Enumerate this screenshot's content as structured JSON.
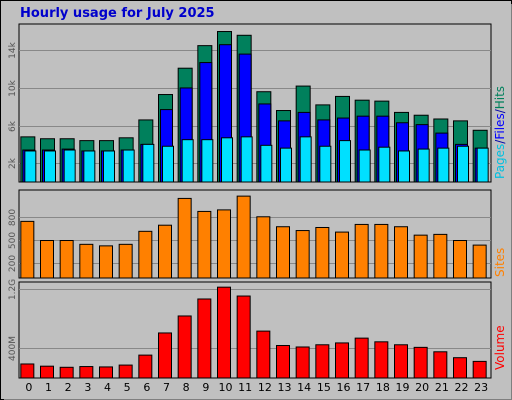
{
  "title": "Hourly usage for July 2025",
  "colors": {
    "hits": "#00805c",
    "files": "#0000ff",
    "pages": "#00e0ff",
    "sites": "#ff8000",
    "volume": "#ff0000",
    "title": "#0000cc",
    "background": "#c0c0c0"
  },
  "right_labels": {
    "pages": "Pages",
    "files": "Files",
    "hits": "Hits",
    "sep": "/",
    "sites": "Sites",
    "volume": "Volume"
  },
  "chart_data": [
    {
      "type": "bar",
      "name": "hits-files-pages",
      "categories": [
        "0",
        "1",
        "2",
        "3",
        "4",
        "5",
        "6",
        "7",
        "8",
        "9",
        "10",
        "11",
        "12",
        "13",
        "14",
        "15",
        "16",
        "17",
        "18",
        "19",
        "20",
        "21",
        "22",
        "23"
      ],
      "series": [
        {
          "name": "Hits",
          "values": [
            4800,
            4600,
            4600,
            4400,
            4400,
            4700,
            6600,
            9300,
            12100,
            14500,
            16000,
            15600,
            9600,
            7600,
            10200,
            8200,
            9100,
            8700,
            8600,
            7400,
            7100,
            6700,
            6500,
            5500
          ]
        },
        {
          "name": "Files",
          "values": [
            3400,
            3400,
            3500,
            3300,
            3300,
            3400,
            4000,
            7700,
            10000,
            12700,
            14600,
            13600,
            8300,
            6500,
            7400,
            6600,
            6800,
            7000,
            7000,
            6300,
            6100,
            5200,
            4000,
            3600
          ]
        },
        {
          "name": "Pages",
          "values": [
            3300,
            3300,
            3400,
            3300,
            3300,
            3400,
            4000,
            3800,
            4500,
            4500,
            4700,
            4800,
            3900,
            3600,
            4800,
            3800,
            4400,
            3400,
            3700,
            3300,
            3500,
            3600,
            3800,
            3600
          ]
        }
      ],
      "yticks": [
        "2k",
        "6k",
        "10k",
        "14k"
      ],
      "ylim": [
        0,
        16800
      ]
    },
    {
      "type": "bar",
      "name": "sites",
      "categories": [
        "0",
        "1",
        "2",
        "3",
        "4",
        "5",
        "6",
        "7",
        "8",
        "9",
        "10",
        "11",
        "12",
        "13",
        "14",
        "15",
        "16",
        "17",
        "18",
        "19",
        "20",
        "21",
        "22",
        "23"
      ],
      "series": [
        {
          "name": "Sites",
          "values": [
            740,
            490,
            490,
            440,
            420,
            440,
            610,
            690,
            1040,
            870,
            890,
            1070,
            800,
            670,
            620,
            660,
            600,
            700,
            700,
            670,
            560,
            570,
            490,
            430
          ]
        }
      ],
      "yticks": [
        "200",
        "500",
        "800"
      ],
      "ylim": [
        0,
        1150
      ]
    },
    {
      "type": "bar",
      "name": "volume",
      "categories": [
        "0",
        "1",
        "2",
        "3",
        "4",
        "5",
        "6",
        "7",
        "8",
        "9",
        "10",
        "11",
        "12",
        "13",
        "14",
        "15",
        "16",
        "17",
        "18",
        "19",
        "20",
        "21",
        "22",
        "23"
      ],
      "series": [
        {
          "name": "Volume",
          "values": [
            190,
            160,
            145,
            155,
            150,
            175,
            310,
            610,
            840,
            1070,
            1230,
            1110,
            635,
            440,
            420,
            450,
            475,
            540,
            490,
            450,
            415,
            355,
            275,
            225
          ]
        }
      ],
      "yticks": [
        "400M",
        "1.2G"
      ],
      "ylim": [
        0,
        1300
      ]
    }
  ]
}
